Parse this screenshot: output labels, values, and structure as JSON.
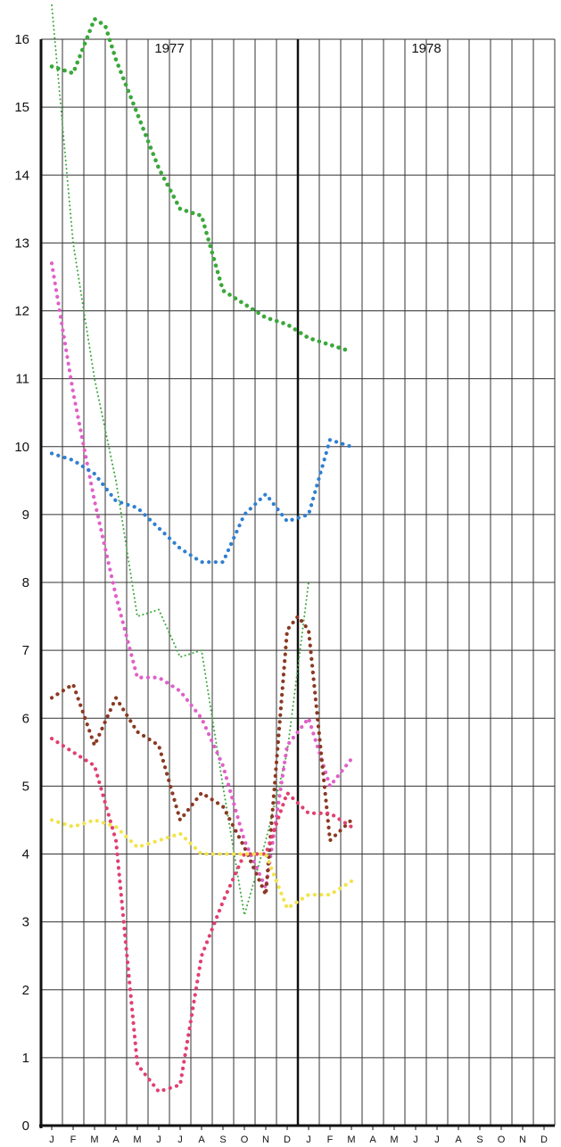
{
  "chart_data": {
    "type": "scatter",
    "title": "",
    "xlabel": "",
    "ylabel": "",
    "ylim": [
      0,
      16
    ],
    "grid": true,
    "years": [
      "1977",
      "1978"
    ],
    "month_labels": [
      "J",
      "F",
      "M",
      "A",
      "M",
      "J",
      "J",
      "A",
      "S",
      "O",
      "N",
      "D",
      "J",
      "F",
      "M",
      "A",
      "M",
      "J",
      "J",
      "A",
      "S",
      "O",
      "N",
      "D"
    ],
    "y_ticks": [
      "0",
      "1",
      "2",
      "3",
      "4",
      "5",
      "6",
      "7",
      "8",
      "9",
      "10",
      "11",
      "12",
      "13",
      "14",
      "15",
      "16"
    ],
    "series": [
      {
        "color": "#3aa83a",
        "style": "dotted-large",
        "x": [
          0,
          1,
          2,
          2.5,
          3,
          4,
          5,
          6,
          7,
          8,
          9,
          10,
          11,
          12,
          13,
          14
        ],
        "y": [
          15.6,
          15.5,
          16.3,
          16.2,
          15.7,
          14.9,
          14.1,
          13.5,
          13.4,
          12.3,
          12.1,
          11.9,
          11.8,
          11.6,
          11.5,
          11.4
        ]
      },
      {
        "color": "#3aa83a",
        "style": "dotted-small",
        "x": [
          0,
          1,
          2,
          3,
          4,
          5,
          6,
          7,
          8,
          9,
          10,
          11,
          12
        ],
        "y": [
          16.5,
          13.0,
          11.0,
          9.5,
          7.5,
          7.6,
          6.9,
          7.0,
          5.0,
          3.1,
          4.2,
          5.5,
          8.0
        ]
      },
      {
        "color": "#e060c8",
        "style": "dotted",
        "x": [
          0,
          1,
          2,
          3,
          4,
          5,
          6,
          7,
          8,
          9,
          10,
          11,
          12,
          13,
          14
        ],
        "y": [
          12.7,
          10.8,
          9.2,
          7.8,
          6.6,
          6.6,
          6.4,
          6.0,
          5.3,
          4.2,
          3.5,
          5.6,
          6.0,
          5.0,
          5.4
        ]
      },
      {
        "color": "#2f7fd0",
        "style": "dotted",
        "x": [
          0,
          1,
          2,
          3,
          4,
          5,
          6,
          7,
          8,
          9,
          10,
          11,
          12,
          13,
          14
        ],
        "y": [
          9.9,
          9.8,
          9.6,
          9.2,
          9.1,
          8.8,
          8.5,
          8.3,
          8.3,
          9.0,
          9.3,
          8.9,
          9.0,
          10.1,
          10.0
        ]
      },
      {
        "color": "#8a3a22",
        "style": "dotted",
        "x": [
          0,
          1,
          2,
          3,
          4,
          5,
          6,
          7,
          8,
          9,
          10,
          11,
          11.5,
          12,
          13,
          14
        ],
        "y": [
          6.3,
          6.5,
          5.6,
          6.3,
          5.8,
          5.6,
          4.5,
          4.9,
          4.7,
          4.1,
          3.4,
          7.3,
          7.5,
          7.3,
          4.2,
          4.5
        ]
      },
      {
        "color": "#e04070",
        "style": "dotted",
        "x": [
          0,
          1,
          2,
          3,
          4,
          5,
          6,
          7,
          8,
          9,
          10,
          11,
          12,
          13,
          14
        ],
        "y": [
          5.7,
          5.5,
          5.3,
          4.2,
          0.9,
          0.5,
          0.6,
          2.5,
          3.3,
          4.0,
          4.0,
          4.9,
          4.6,
          4.6,
          4.4
        ]
      },
      {
        "color": "#f2e34a",
        "style": "dotted",
        "x": [
          0,
          1,
          2,
          3,
          4,
          5,
          6,
          7,
          8,
          9,
          10,
          11,
          12,
          13,
          14
        ],
        "y": [
          4.5,
          4.4,
          4.5,
          4.4,
          4.1,
          4.2,
          4.3,
          4.0,
          4.0,
          4.0,
          4.0,
          3.2,
          3.4,
          3.4,
          3.6
        ]
      }
    ]
  }
}
